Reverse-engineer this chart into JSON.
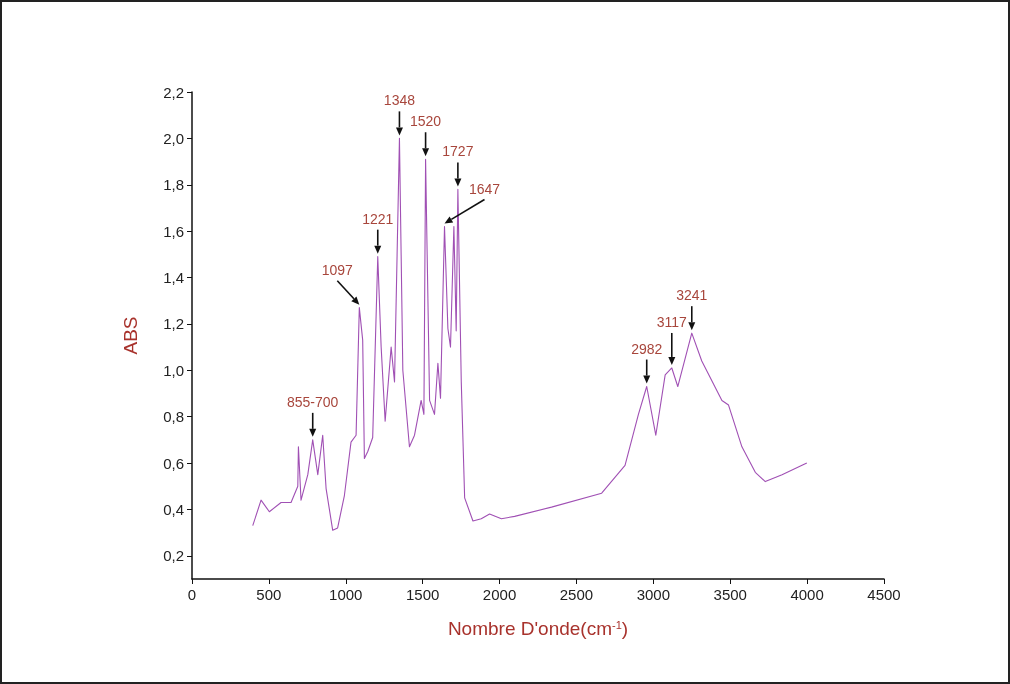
{
  "chart_data": {
    "type": "line",
    "xlabel": "Nombre D'onde(cm$^{-1}$)",
    "ylabel": "ABS",
    "xlim": [
      0,
      4500
    ],
    "xticks": [
      0,
      500,
      1000,
      1500,
      2000,
      2500,
      3000,
      3500,
      4000,
      4500
    ],
    "ylim": [
      0.1,
      2.2
    ],
    "yticks": [
      {
        "value": 0.2,
        "label": "0,2"
      },
      {
        "value": 0.4,
        "label": "0,4"
      },
      {
        "value": 0.6,
        "label": "0,6"
      },
      {
        "value": 0.8,
        "label": "0,8"
      },
      {
        "value": 1.0,
        "label": "1,0"
      },
      {
        "value": 1.2,
        "label": "1,2"
      },
      {
        "value": 1.4,
        "label": "1,4"
      },
      {
        "value": 1.6,
        "label": "1,6"
      },
      {
        "value": 1.8,
        "label": "1,8"
      },
      {
        "value": 2.0,
        "label": "2,0"
      },
      {
        "value": 2.2,
        "label": "2,2"
      }
    ],
    "marker": "none",
    "line_style": "solid",
    "series": [
      {
        "color": "#a050b4",
        "x": [
          395,
          449,
          503,
          579,
          644,
          688,
          692,
          709,
          753,
          785,
          818,
          850,
          872,
          915,
          947,
          991,
          1034,
          1067,
          1088,
          1110,
          1121,
          1143,
          1175,
          1208,
          1230,
          1256,
          1295,
          1317,
          1349,
          1371,
          1414,
          1447,
          1490,
          1508,
          1519,
          1545,
          1577,
          1599,
          1616,
          1642,
          1664,
          1681,
          1703,
          1718,
          1729,
          1751,
          1773,
          1827,
          1881,
          1935,
          2012,
          2098,
          2338,
          2664,
          2816,
          2903,
          2957,
          3016,
          3077,
          3120,
          3159,
          3250,
          3315,
          3446,
          3489,
          3576,
          3663,
          3728,
          3837,
          3967,
          3998
        ],
        "values": [
          0.33,
          0.44,
          0.39,
          0.43,
          0.43,
          0.5,
          0.67,
          0.44,
          0.55,
          0.7,
          0.55,
          0.72,
          0.49,
          0.31,
          0.32,
          0.46,
          0.69,
          0.72,
          1.27,
          1.13,
          0.62,
          0.65,
          0.71,
          1.49,
          1.1,
          0.78,
          1.1,
          0.95,
          2.0,
          1.0,
          0.67,
          0.72,
          0.87,
          0.81,
          1.91,
          0.87,
          0.81,
          1.03,
          0.88,
          1.62,
          1.18,
          1.1,
          1.62,
          1.17,
          1.78,
          0.95,
          0.45,
          0.35,
          0.36,
          0.38,
          0.36,
          0.37,
          0.41,
          0.47,
          0.59,
          0.81,
          0.93,
          0.72,
          0.98,
          1.01,
          0.93,
          1.16,
          1.04,
          0.87,
          0.85,
          0.67,
          0.56,
          0.52,
          0.55,
          0.59,
          0.6
        ]
      }
    ],
    "annotations": [
      {
        "text": "855-700",
        "x": 785,
        "y": 0.7
      },
      {
        "text": "1097",
        "x": 1088,
        "y": 1.27
      },
      {
        "text": "1221",
        "x": 1208,
        "y": 1.49
      },
      {
        "text": "1348",
        "x": 1349,
        "y": 2.0
      },
      {
        "text": "1520",
        "x": 1519,
        "y": 1.91
      },
      {
        "text": "1647",
        "x": 1642,
        "y": 1.62
      },
      {
        "text": "1727",
        "x": 1729,
        "y": 1.78
      },
      {
        "text": "2982",
        "x": 2957,
        "y": 0.93
      },
      {
        "text": "3117",
        "x": 3120,
        "y": 1.01
      },
      {
        "text": "3241",
        "x": 3250,
        "y": 1.16
      }
    ]
  }
}
